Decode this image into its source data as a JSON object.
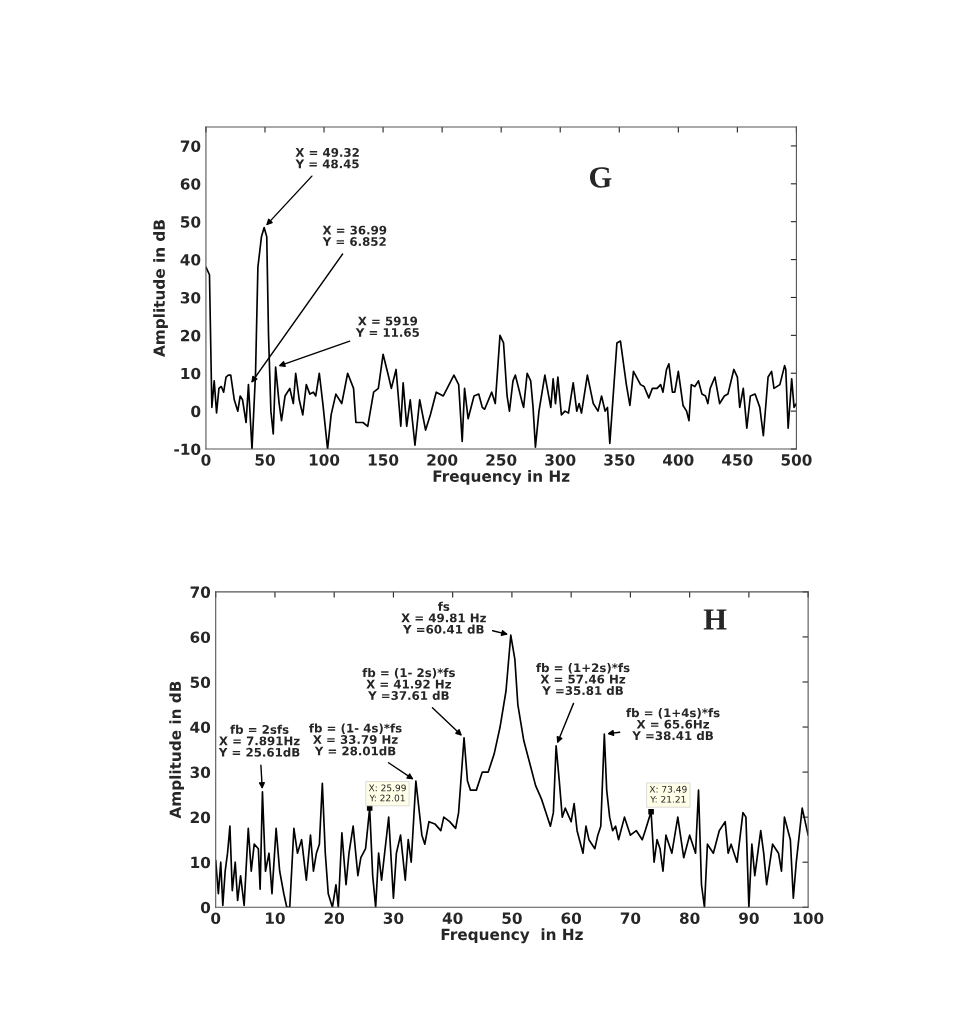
{
  "chart_data": [
    {
      "type": "line",
      "xlabel": "Frequency in Hz",
      "ylabel": "Amplitude in dB",
      "xlim": [
        0,
        500
      ],
      "ylim": [
        -10,
        75
      ],
      "xticks": [
        0,
        50,
        100,
        150,
        200,
        250,
        300,
        350,
        400,
        450,
        500
      ],
      "yticks": [
        -10,
        0,
        10,
        20,
        30,
        40,
        50,
        60,
        70
      ],
      "grid": false,
      "line_style": "solid",
      "marker": "none",
      "annotations": [
        {
          "text": "X = 49.32\nY = 48.45",
          "x": 49.32,
          "y": 48.45
        },
        {
          "text": "X = 36.99\nY = 6.852",
          "x": 36.99,
          "y": 6.852
        },
        {
          "text": "X = 5919\nY = 11.65",
          "x": 59.19,
          "y": 11.65
        },
        "G"
      ],
      "series": [
        {
          "color": "#000000",
          "x": [
            0,
            3,
            5,
            7,
            9,
            11,
            13,
            15,
            17,
            19,
            21,
            24,
            27,
            29,
            31,
            34,
            36,
            39,
            42,
            44,
            47,
            49.3,
            51.5,
            53,
            55,
            57,
            59,
            62,
            64,
            67,
            71,
            74,
            76,
            79,
            82,
            85,
            88,
            91,
            93,
            96,
            99,
            103,
            106,
            110,
            115,
            120,
            125,
            127,
            133,
            137,
            142,
            146,
            150,
            154,
            157,
            161,
            165,
            167,
            170,
            173,
            177,
            181,
            186,
            190,
            195,
            201,
            210,
            214,
            217,
            219,
            222,
            227,
            231,
            234,
            236,
            242,
            245,
            249,
            252,
            255,
            257,
            260,
            262,
            268,
            269,
            272,
            275,
            277,
            279,
            282,
            287,
            292,
            294,
            296,
            298,
            301,
            304,
            307,
            311,
            314,
            316,
            318,
            323,
            328,
            332,
            335,
            338,
            340,
            342,
            348,
            351,
            356,
            359,
            362,
            368,
            371,
            375,
            378,
            382,
            385,
            387,
            390,
            392,
            395,
            397,
            400,
            404,
            407,
            409,
            411,
            414,
            417,
            420,
            423,
            425,
            427,
            431,
            435,
            439,
            442,
            447,
            450,
            452,
            455,
            458,
            461,
            465,
            469,
            472,
            476,
            479,
            481,
            486,
            490,
            491,
            493,
            496,
            498,
            500
          ],
          "values": [
            38,
            36,
            1,
            8,
            -0.5,
            6,
            6.5,
            5,
            9,
            9.5,
            9.5,
            3,
            0,
            4,
            3,
            -3,
            7,
            -10,
            10,
            38,
            46,
            48.45,
            46,
            20,
            0,
            -6,
            11.65,
            2,
            -2.5,
            4,
            6,
            2,
            10,
            3,
            -1,
            7,
            4.5,
            5,
            4,
            10,
            2,
            -10,
            -1,
            4.5,
            2,
            10,
            6,
            -3,
            -3,
            -4,
            5,
            6,
            15,
            10,
            6,
            11,
            -4,
            7.5,
            -4,
            3,
            -9,
            3,
            -5,
            -1,
            5,
            4,
            9.5,
            7,
            -8,
            6,
            -2,
            4,
            4.5,
            1,
            0.5,
            5,
            2,
            20,
            18,
            4,
            0,
            8,
            9.5,
            2,
            1,
            10,
            8,
            1,
            -9.5,
            0,
            9.5,
            1,
            8.5,
            2,
            9,
            -1,
            0,
            -0.5,
            7.5,
            0,
            2,
            -0.5,
            9.5,
            2,
            0,
            4,
            0,
            1,
            -8.5,
            18,
            18.5,
            7,
            1.5,
            10.5,
            7,
            6.5,
            3.5,
            6,
            6,
            7,
            5,
            11,
            12.5,
            5,
            5,
            10.5,
            1.5,
            0,
            -2.5,
            7,
            6.5,
            8,
            4.5,
            4,
            2,
            6,
            9,
            2,
            4,
            4.5,
            11,
            9,
            1,
            6,
            -4.5,
            4,
            4.5,
            1,
            -6.5,
            9,
            10.5,
            6,
            7,
            12,
            11,
            -4.5,
            8.5,
            1,
            2
          ]
        }
      ]
    },
    {
      "type": "line",
      "xlabel": "Frequency  in Hz",
      "ylabel": "Amplitude in dB",
      "xlim": [
        0,
        100
      ],
      "ylim": [
        0,
        70
      ],
      "xticks": [
        0,
        10,
        20,
        30,
        40,
        50,
        60,
        70,
        80,
        90,
        100
      ],
      "yticks": [
        0,
        10,
        20,
        30,
        40,
        50,
        60,
        70
      ],
      "grid": false,
      "line_style": "solid",
      "marker": "none",
      "annotations": [
        {
          "text": "fs\nX = 49.81 Hz\nY =60.41 dB",
          "x": 49.81,
          "y": 60.41
        },
        {
          "text": "fb = (1- 2s)*fs\nX = 41.92 Hz\nY =37.61 dB",
          "x": 41.92,
          "y": 37.61
        },
        {
          "text": "fb = (1- 4s)*fs\nX = 33.79 Hz\nY = 28.01dB",
          "x": 33.79,
          "y": 28.01
        },
        {
          "text": "fb = 2sfs\nX = 7.891Hz\nY = 25.61dB",
          "x": 7.891,
          "y": 25.61
        },
        {
          "text": "fb = (1+2s)*fs\nX = 57.46 Hz\nY =35.81 dB",
          "x": 57.46,
          "y": 35.81
        },
        {
          "text": "fb = (1+4s)*fs\nX = 65.6Hz\nY =38.41 dB",
          "x": 65.6,
          "y": 38.41
        },
        {
          "text": "X: 25.99\nY: 22.01",
          "x": 25.99,
          "y": 22.01
        },
        {
          "text": "X: 73.49\nY: 21.21",
          "x": 73.49,
          "y": 21.21
        },
        "H"
      ],
      "series": [
        {
          "color": "#000000",
          "x": [
            0,
            0.45,
            0.85,
            1.2,
            1.6,
            2.0,
            2.4,
            2.8,
            3.3,
            3.7,
            4.2,
            4.8,
            5.5,
            6.0,
            6.5,
            7.2,
            7.5,
            7.891,
            8.4,
            9,
            9.5,
            10.2,
            10.8,
            11.5,
            12,
            12.5,
            13.2,
            13.8,
            14.5,
            15.3,
            16,
            16.5,
            17,
            17.5,
            18,
            18.5,
            19,
            19.7,
            20.3,
            20.7,
            21.3,
            22,
            22.5,
            23.2,
            24,
            24.5,
            25.3,
            25.99,
            26.5,
            27,
            27.5,
            28,
            29.2,
            30,
            30.5,
            31.2,
            32,
            32.5,
            33,
            33.79,
            34.3,
            34.8,
            35.3,
            36,
            37,
            38,
            38.5,
            39.5,
            40.5,
            41,
            41.92,
            42.5,
            43,
            44,
            45,
            46,
            47,
            48,
            49,
            49.81,
            50.5,
            51,
            52,
            53,
            54,
            55,
            56,
            56.5,
            57,
            57.46,
            58,
            58.5,
            59,
            60,
            60.5,
            61,
            62,
            62.5,
            63,
            64,
            64.5,
            65,
            65.6,
            66,
            66.5,
            67,
            67.5,
            68,
            69,
            70,
            71,
            72,
            72.5,
            73.49,
            74,
            74.5,
            75,
            75.5,
            76,
            77,
            78,
            79,
            80,
            81,
            81.5,
            82,
            82.5,
            83,
            84,
            85,
            86,
            86.5,
            87,
            88,
            89,
            89.5,
            90,
            90.5,
            91,
            92,
            92.5,
            93,
            94,
            95,
            95.5,
            96,
            97,
            97.5,
            98,
            99,
            99.5,
            100
          ],
          "values": [
            10.4,
            3,
            10,
            0.4,
            8,
            12,
            18,
            3.7,
            10,
            1.5,
            7,
            0.4,
            17.5,
            8,
            14,
            13,
            4,
            25.61,
            8,
            12,
            3,
            17.5,
            8,
            3,
            0,
            0,
            17.5,
            12,
            15,
            6,
            16,
            8,
            12,
            14,
            27.5,
            12,
            3,
            0,
            5,
            0,
            16.5,
            5,
            12,
            18,
            7,
            11,
            13,
            22.01,
            7,
            0,
            12,
            6,
            20,
            2,
            12,
            16,
            6,
            15,
            10,
            28.01,
            22,
            16,
            14,
            19,
            18.5,
            17,
            20,
            19,
            17.5,
            21,
            37.61,
            28,
            26,
            26,
            30,
            30,
            34,
            40,
            48,
            60.41,
            55,
            45,
            37,
            32,
            27,
            24,
            20,
            18,
            21,
            35.81,
            28,
            20,
            22,
            19,
            23,
            17,
            12,
            18,
            15,
            13,
            16,
            18,
            38.41,
            26,
            20,
            17,
            18,
            15,
            20,
            16,
            17,
            15,
            17,
            21.21,
            10,
            15,
            13,
            8,
            16,
            12,
            20,
            11,
            16,
            12,
            26,
            5,
            0,
            14,
            12,
            17,
            19,
            12,
            14,
            10,
            21,
            20,
            0,
            14,
            7,
            17,
            12,
            5,
            14,
            12,
            8,
            20,
            15,
            2,
            10,
            22,
            19,
            16
          ]
        }
      ]
    }
  ]
}
